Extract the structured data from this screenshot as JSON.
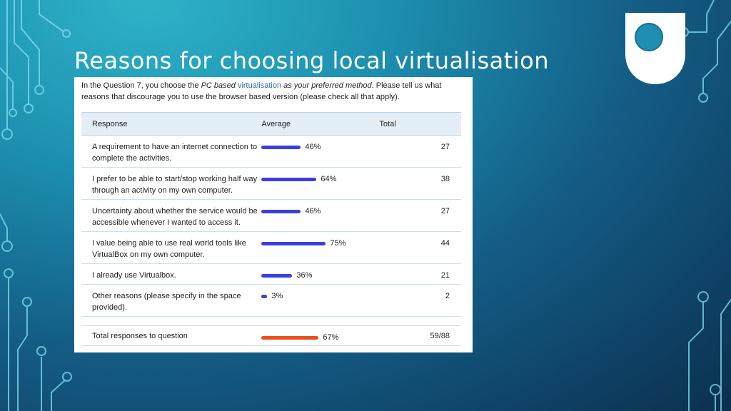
{
  "slide": {
    "title": "Reasons for choosing local virtualisation"
  },
  "question": {
    "part1": "In the Question 7, you choose the ",
    "emph1": "PC based ",
    "link": "virtualisation",
    "emph2": " as your preferred method",
    "part2": ". Please tell us what reasons that discourage you to use the browser based version (please check all that apply)."
  },
  "table": {
    "headers": [
      "Response",
      "Average",
      "Total"
    ],
    "rows": [
      {
        "response": "A requirement to have an internet connection to complete the activities.",
        "average_pct": 46,
        "average_label": "46%",
        "total": "27"
      },
      {
        "response": "I prefer to be able to start/stop working half way through an activity on my own computer.",
        "average_pct": 64,
        "average_label": "64%",
        "total": "38"
      },
      {
        "response": "Uncertainty about whether the service would be accessible whenever I wanted to access it.",
        "average_pct": 46,
        "average_label": "46%",
        "total": "27"
      },
      {
        "response": "I value being able to use real world tools like VirtualBox on my own computer.",
        "average_pct": 75,
        "average_label": "75%",
        "total": "44"
      },
      {
        "response": "I already use Virtualbox.",
        "average_pct": 36,
        "average_label": "36%",
        "total": "21"
      },
      {
        "response": "Other reasons (please specify in the space provided).",
        "average_pct": 3,
        "average_label": "3%",
        "total": "2"
      }
    ],
    "total_row": {
      "response": "Total responses to question",
      "average_pct": 67,
      "average_label": "67%",
      "total": "59/88"
    }
  },
  "colors": {
    "bar": "#3a3fe0",
    "total_bar": "#e8501e",
    "header_bg": "#e4eef7"
  },
  "icons": {
    "logo": "open-university-shield-logo"
  }
}
